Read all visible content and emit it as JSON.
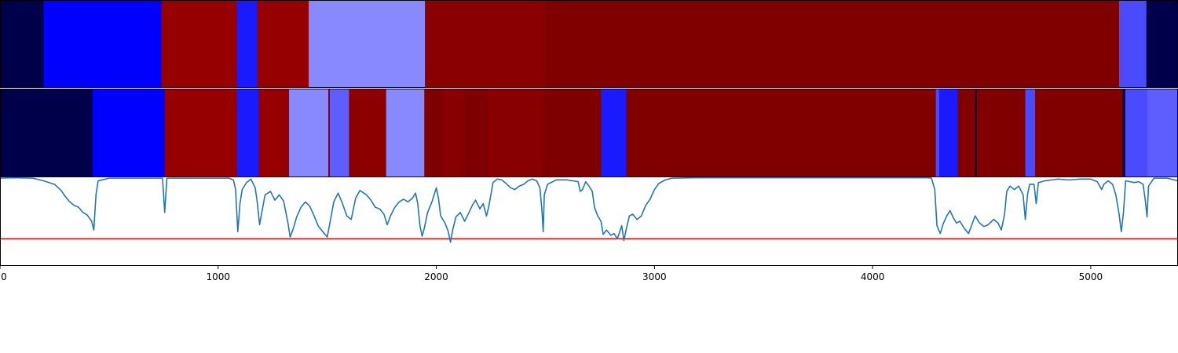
{
  "chart_data": {
    "type": "heatmap",
    "title": "",
    "xlabel": "",
    "ylabel": "",
    "xlim": [
      0,
      5400
    ],
    "x_ticks": [
      {
        "value": 0,
        "label": "0"
      },
      {
        "value": 1000,
        "label": "1000"
      },
      {
        "value": 2000,
        "label": "2000"
      },
      {
        "value": 3000,
        "label": "3000"
      },
      {
        "value": 4000,
        "label": "4000"
      },
      {
        "value": 5000,
        "label": "5000"
      }
    ],
    "colors": {
      "navy": "#00004a",
      "blue": "#0000ff",
      "blue2": "#1a1aff",
      "lightblue": "#8888ff",
      "midblue": "#5e5eff",
      "midblue2": "#4a4aff",
      "red_bright": "#960000",
      "red_mid": "#8c0000",
      "red_dark": "#800000",
      "red_darker": "#7a0000",
      "signal": "#1f77b4",
      "threshold": "#ff0000"
    },
    "rows": [
      {
        "name": "top-strip",
        "segments": [
          {
            "start": 0,
            "end": 200,
            "color": "#00004a"
          },
          {
            "start": 200,
            "end": 740,
            "color": "#0000ff"
          },
          {
            "start": 740,
            "end": 1085,
            "color": "#960000"
          },
          {
            "start": 1085,
            "end": 1180,
            "color": "#1a1aff"
          },
          {
            "start": 1180,
            "end": 1415,
            "color": "#960000"
          },
          {
            "start": 1415,
            "end": 1948,
            "color": "#8888ff"
          },
          {
            "start": 1948,
            "end": 2500,
            "color": "#8a0000"
          },
          {
            "start": 2500,
            "end": 5130,
            "color": "#800000"
          },
          {
            "start": 5130,
            "end": 5255,
            "color": "#4a4aff"
          },
          {
            "start": 5255,
            "end": 5400,
            "color": "#00004a"
          }
        ]
      },
      {
        "name": "bottom-strip",
        "segments": [
          {
            "start": 0,
            "end": 425,
            "color": "#00004a"
          },
          {
            "start": 425,
            "end": 755,
            "color": "#0000ff"
          },
          {
            "start": 755,
            "end": 1085,
            "color": "#960000"
          },
          {
            "start": 1085,
            "end": 1185,
            "color": "#1a1aff"
          },
          {
            "start": 1185,
            "end": 1325,
            "color": "#960000"
          },
          {
            "start": 1325,
            "end": 1505,
            "color": "#8888ff"
          },
          {
            "start": 1505,
            "end": 1512,
            "color": "#800000"
          },
          {
            "start": 1512,
            "end": 1600,
            "color": "#5e5eff"
          },
          {
            "start": 1600,
            "end": 1770,
            "color": "#8c0000"
          },
          {
            "start": 1770,
            "end": 1945,
            "color": "#8888ff"
          },
          {
            "start": 1945,
            "end": 2035,
            "color": "#7e0000"
          },
          {
            "start": 2035,
            "end": 2130,
            "color": "#880000"
          },
          {
            "start": 2130,
            "end": 2235,
            "color": "#7e0000"
          },
          {
            "start": 2235,
            "end": 2490,
            "color": "#880000"
          },
          {
            "start": 2490,
            "end": 2755,
            "color": "#7e0000"
          },
          {
            "start": 2755,
            "end": 2870,
            "color": "#1a1aff"
          },
          {
            "start": 2870,
            "end": 4290,
            "color": "#800000"
          },
          {
            "start": 4290,
            "end": 4305,
            "color": "#4a4aff"
          },
          {
            "start": 4305,
            "end": 4390,
            "color": "#1a1aff"
          },
          {
            "start": 4390,
            "end": 4470,
            "color": "#800000"
          },
          {
            "start": 4470,
            "end": 4478,
            "color": "#00004a"
          },
          {
            "start": 4478,
            "end": 4700,
            "color": "#800000"
          },
          {
            "start": 4700,
            "end": 4745,
            "color": "#4a4aff"
          },
          {
            "start": 4745,
            "end": 5145,
            "color": "#800000"
          },
          {
            "start": 5145,
            "end": 5158,
            "color": "#00004a"
          },
          {
            "start": 5158,
            "end": 5260,
            "color": "#4a4aff"
          },
          {
            "start": 5260,
            "end": 5400,
            "color": "#5e5eff"
          }
        ]
      }
    ],
    "signal": {
      "name": "",
      "ylim": [
        0,
        1.0
      ],
      "threshold": 0.3,
      "points": [
        [
          0,
          0.99
        ],
        [
          60,
          0.995
        ],
        [
          150,
          0.99
        ],
        [
          200,
          0.96
        ],
        [
          250,
          0.92
        ],
        [
          280,
          0.85
        ],
        [
          300,
          0.78
        ],
        [
          320,
          0.72
        ],
        [
          340,
          0.68
        ],
        [
          360,
          0.66
        ],
        [
          380,
          0.6
        ],
        [
          400,
          0.57
        ],
        [
          420,
          0.5
        ],
        [
          430,
          0.4
        ],
        [
          440,
          0.8
        ],
        [
          450,
          0.96
        ],
        [
          500,
          0.99
        ],
        [
          700,
          0.99
        ],
        [
          745,
          0.99
        ],
        [
          755,
          0.6
        ],
        [
          765,
          0.99
        ],
        [
          800,
          0.99
        ],
        [
          1050,
          0.99
        ],
        [
          1070,
          0.97
        ],
        [
          1080,
          0.86
        ],
        [
          1090,
          0.38
        ],
        [
          1100,
          0.7
        ],
        [
          1110,
          0.86
        ],
        [
          1130,
          0.94
        ],
        [
          1150,
          0.98
        ],
        [
          1170,
          0.88
        ],
        [
          1180,
          0.7
        ],
        [
          1190,
          0.46
        ],
        [
          1200,
          0.6
        ],
        [
          1215,
          0.8
        ],
        [
          1240,
          0.84
        ],
        [
          1260,
          0.74
        ],
        [
          1280,
          0.8
        ],
        [
          1300,
          0.73
        ],
        [
          1320,
          0.48
        ],
        [
          1330,
          0.32
        ],
        [
          1345,
          0.42
        ],
        [
          1360,
          0.55
        ],
        [
          1380,
          0.66
        ],
        [
          1400,
          0.72
        ],
        [
          1420,
          0.67
        ],
        [
          1440,
          0.56
        ],
        [
          1460,
          0.44
        ],
        [
          1480,
          0.38
        ],
        [
          1500,
          0.32
        ],
        [
          1510,
          0.45
        ],
        [
          1530,
          0.72
        ],
        [
          1550,
          0.82
        ],
        [
          1570,
          0.7
        ],
        [
          1590,
          0.56
        ],
        [
          1610,
          0.52
        ],
        [
          1630,
          0.76
        ],
        [
          1650,
          0.85
        ],
        [
          1680,
          0.8
        ],
        [
          1700,
          0.74
        ],
        [
          1720,
          0.66
        ],
        [
          1740,
          0.64
        ],
        [
          1760,
          0.58
        ],
        [
          1775,
          0.46
        ],
        [
          1790,
          0.56
        ],
        [
          1810,
          0.66
        ],
        [
          1830,
          0.72
        ],
        [
          1850,
          0.75
        ],
        [
          1870,
          0.72
        ],
        [
          1890,
          0.76
        ],
        [
          1905,
          0.82
        ],
        [
          1915,
          0.7
        ],
        [
          1925,
          0.45
        ],
        [
          1935,
          0.33
        ],
        [
          1945,
          0.42
        ],
        [
          1960,
          0.6
        ],
        [
          1980,
          0.72
        ],
        [
          2000,
          0.88
        ],
        [
          2010,
          0.76
        ],
        [
          2020,
          0.56
        ],
        [
          2040,
          0.48
        ],
        [
          2055,
          0.38
        ],
        [
          2065,
          0.26
        ],
        [
          2075,
          0.4
        ],
        [
          2090,
          0.55
        ],
        [
          2110,
          0.6
        ],
        [
          2130,
          0.5
        ],
        [
          2150,
          0.6
        ],
        [
          2165,
          0.68
        ],
        [
          2180,
          0.74
        ],
        [
          2200,
          0.64
        ],
        [
          2215,
          0.7
        ],
        [
          2230,
          0.56
        ],
        [
          2240,
          0.66
        ],
        [
          2260,
          0.94
        ],
        [
          2280,
          0.98
        ],
        [
          2300,
          0.97
        ],
        [
          2320,
          0.93
        ],
        [
          2340,
          0.88
        ],
        [
          2360,
          0.86
        ],
        [
          2380,
          0.9
        ],
        [
          2400,
          0.92
        ],
        [
          2420,
          0.96
        ],
        [
          2440,
          0.98
        ],
        [
          2460,
          0.96
        ],
        [
          2475,
          0.88
        ],
        [
          2485,
          0.6
        ],
        [
          2490,
          0.38
        ],
        [
          2495,
          0.8
        ],
        [
          2510,
          0.92
        ],
        [
          2550,
          0.97
        ],
        [
          2600,
          0.97
        ],
        [
          2650,
          0.95
        ],
        [
          2660,
          0.84
        ],
        [
          2670,
          0.86
        ],
        [
          2685,
          0.95
        ],
        [
          2700,
          0.9
        ],
        [
          2715,
          0.84
        ],
        [
          2725,
          0.66
        ],
        [
          2740,
          0.56
        ],
        [
          2755,
          0.5
        ],
        [
          2765,
          0.35
        ],
        [
          2780,
          0.4
        ],
        [
          2800,
          0.34
        ],
        [
          2815,
          0.36
        ],
        [
          2830,
          0.3
        ],
        [
          2850,
          0.45
        ],
        [
          2860,
          0.28
        ],
        [
          2870,
          0.4
        ],
        [
          2885,
          0.56
        ],
        [
          2900,
          0.58
        ],
        [
          2920,
          0.52
        ],
        [
          2940,
          0.56
        ],
        [
          2960,
          0.68
        ],
        [
          2980,
          0.75
        ],
        [
          3000,
          0.86
        ],
        [
          3020,
          0.93
        ],
        [
          3050,
          0.97
        ],
        [
          3080,
          0.99
        ],
        [
          3200,
          0.995
        ],
        [
          3600,
          0.995
        ],
        [
          4000,
          0.995
        ],
        [
          4250,
          0.995
        ],
        [
          4270,
          0.99
        ],
        [
          4285,
          0.86
        ],
        [
          4295,
          0.45
        ],
        [
          4310,
          0.36
        ],
        [
          4325,
          0.48
        ],
        [
          4340,
          0.56
        ],
        [
          4355,
          0.62
        ],
        [
          4370,
          0.54
        ],
        [
          4385,
          0.48
        ],
        [
          4400,
          0.5
        ],
        [
          4420,
          0.42
        ],
        [
          4440,
          0.36
        ],
        [
          4455,
          0.46
        ],
        [
          4470,
          0.56
        ],
        [
          4490,
          0.48
        ],
        [
          4510,
          0.44
        ],
        [
          4530,
          0.46
        ],
        [
          4555,
          0.52
        ],
        [
          4575,
          0.48
        ],
        [
          4590,
          0.4
        ],
        [
          4605,
          0.58
        ],
        [
          4615,
          0.84
        ],
        [
          4630,
          0.9
        ],
        [
          4650,
          0.86
        ],
        [
          4670,
          0.9
        ],
        [
          4690,
          0.8
        ],
        [
          4700,
          0.52
        ],
        [
          4710,
          0.8
        ],
        [
          4720,
          0.92
        ],
        [
          4740,
          0.92
        ],
        [
          4750,
          0.7
        ],
        [
          4760,
          0.94
        ],
        [
          4790,
          0.96
        ],
        [
          4820,
          0.97
        ],
        [
          4850,
          0.98
        ],
        [
          4900,
          0.97
        ],
        [
          4950,
          0.98
        ],
        [
          5000,
          0.98
        ],
        [
          5030,
          0.95
        ],
        [
          5050,
          0.86
        ],
        [
          5060,
          0.92
        ],
        [
          5080,
          0.96
        ],
        [
          5100,
          0.92
        ],
        [
          5115,
          0.8
        ],
        [
          5130,
          0.58
        ],
        [
          5140,
          0.38
        ],
        [
          5150,
          0.6
        ],
        [
          5160,
          0.96
        ],
        [
          5180,
          0.95
        ],
        [
          5200,
          0.94
        ],
        [
          5220,
          0.95
        ],
        [
          5240,
          0.92
        ],
        [
          5250,
          0.74
        ],
        [
          5258,
          0.55
        ],
        [
          5265,
          0.9
        ],
        [
          5290,
          0.99
        ],
        [
          5350,
          0.99
        ],
        [
          5400,
          0.96
        ]
      ]
    }
  }
}
